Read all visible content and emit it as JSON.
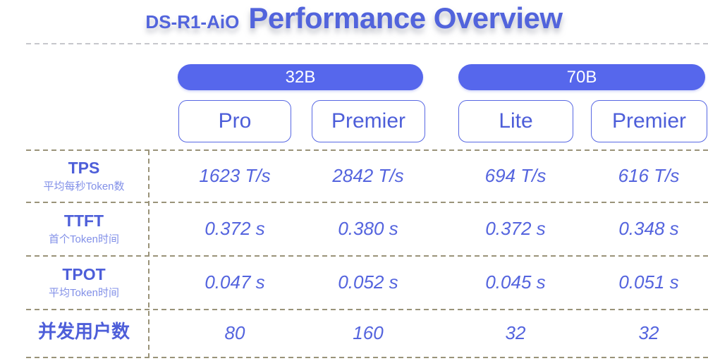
{
  "title": {
    "prefix": "DS-R1-AiO",
    "main": "Performance Overview"
  },
  "groups": [
    {
      "label": "32B",
      "variants": [
        "Pro",
        "Premier"
      ]
    },
    {
      "label": "70B",
      "variants": [
        "Lite",
        "Premier"
      ]
    }
  ],
  "metrics": [
    {
      "name": "TPS",
      "subtitle": "平均每秒Token数",
      "values": [
        "1623 T/s",
        "2842 T/s",
        "694 T/s",
        "616 T/s"
      ]
    },
    {
      "name": "TTFT",
      "subtitle": "首个Token时间",
      "values": [
        "0.372 s",
        "0.380 s",
        "0.372 s",
        "0.348 s"
      ]
    },
    {
      "name": "TPOT",
      "subtitle": "平均Token时间",
      "values": [
        "0.047 s",
        "0.052 s",
        "0.045 s",
        "0.051 s"
      ]
    },
    {
      "name": "并发用户数",
      "subtitle": "",
      "values": [
        "80",
        "160",
        "32",
        "32"
      ]
    }
  ],
  "colors": {
    "accent_blue": "#5264DC",
    "pill_fill": "#5667EC",
    "pill_text": "#FFFFFF",
    "button_border": "#5767E3",
    "button_text": "#4D5ED9",
    "value_text": "#5464DE",
    "sublabel_text": "#8290E8",
    "divider_tan": "#9A9379",
    "divider_gray": "#C6C7CC"
  }
}
